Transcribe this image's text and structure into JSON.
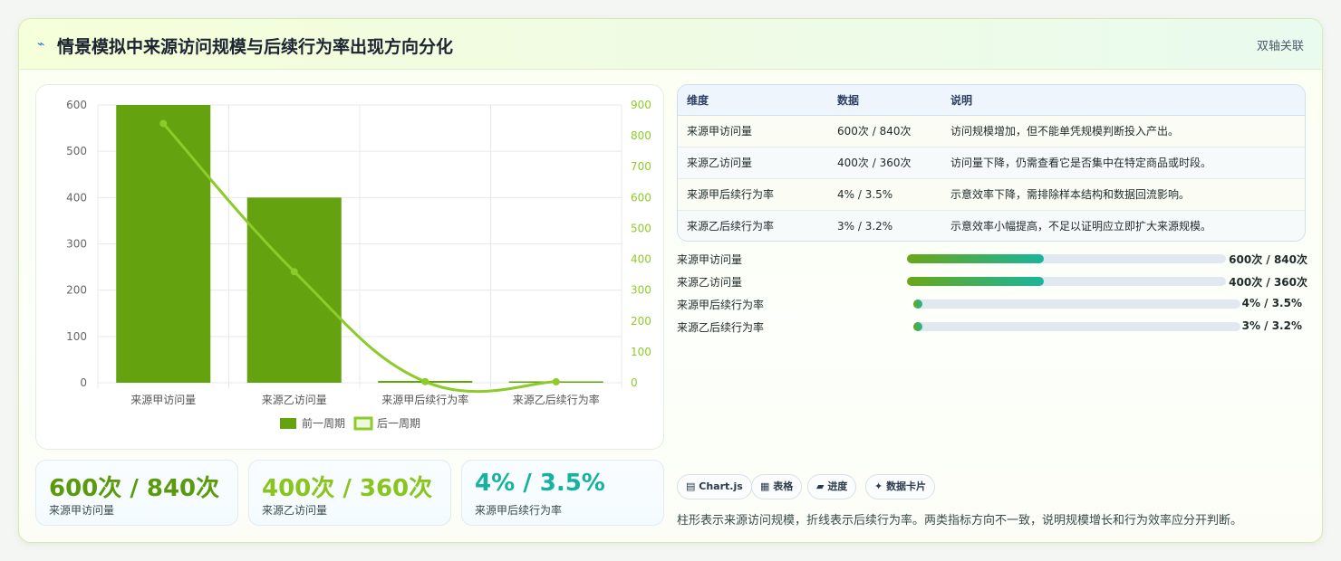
{
  "header": {
    "icon": "lightning-icon",
    "title": "情景模拟中来源访问规模与后续行为率出现方向分化",
    "tag": "双轴关联"
  },
  "colors": {
    "bar_prev": "#64a30f",
    "line_next": "#8ccb2a",
    "kpi_1": "#5a9a0c",
    "kpi_2": "#88c51d",
    "kpi_3": "#16b2a0"
  },
  "chart_data": {
    "type": "bar",
    "categories": [
      "来源甲访问量",
      "来源乙访问量",
      "来源甲后续行为率",
      "来源乙后续行为率"
    ],
    "series": [
      {
        "name": "前一周期",
        "type": "bar",
        "axis": "left",
        "values": [
          600,
          400,
          4,
          3
        ]
      },
      {
        "name": "后一周期",
        "type": "line",
        "axis": "right",
        "values": [
          840,
          360,
          3.5,
          3.2
        ]
      }
    ],
    "y_left": {
      "min": 0,
      "max": 600,
      "ticks": [
        "0",
        "100",
        "200",
        "300",
        "400",
        "500",
        "600"
      ]
    },
    "y_right": {
      "min": 0,
      "max": 900,
      "ticks": [
        "0",
        "100",
        "200",
        "300",
        "400",
        "500",
        "600",
        "700",
        "800",
        "900"
      ]
    },
    "grid": true,
    "legend": "bottom"
  },
  "kpis": [
    {
      "value": "600次 / 840次",
      "label": "来源甲访问量"
    },
    {
      "value": "400次 / 360次",
      "label": "来源乙访问量"
    },
    {
      "value": "4% / 3.5%",
      "label": "来源甲后续行为率"
    }
  ],
  "table": {
    "headers": [
      "维度",
      "数据",
      "说明"
    ],
    "rows": [
      [
        "来源甲访问量",
        "600次 / 840次",
        "访问规模增加，但不能单凭规模判断投入产出。"
      ],
      [
        "来源乙访问量",
        "400次 / 360次",
        "访问量下降，仍需查看它是否集中在特定商品或时段。"
      ],
      [
        "来源甲后续行为率",
        "4% / 3.5%",
        "示意效率下降，需排除样本结构和数据回流影响。"
      ],
      [
        "来源乙后续行为率",
        "3% / 3.2%",
        "示意效率小幅提高，不足以证明应立即扩大来源规模。"
      ]
    ]
  },
  "progress": [
    {
      "label": "来源甲访问量",
      "value": "600次 / 840次",
      "fraction": 0.43
    },
    {
      "label": "来源乙访问量",
      "value": "400次 / 360次",
      "fraction": 0.43
    },
    {
      "label": "来源甲后续行为率",
      "value": "4% / 3.5%",
      "fraction": 0.02
    },
    {
      "label": "来源乙后续行为率",
      "value": "3% / 3.2%",
      "fraction": 0.02
    }
  ],
  "chips": [
    {
      "icon": "chart-icon",
      "glyph": "▤",
      "label": "Chart.js"
    },
    {
      "icon": "table-icon",
      "glyph": "▦",
      "label": "表格"
    },
    {
      "icon": "progress-icon",
      "glyph": "▰",
      "label": "进度"
    },
    {
      "icon": "card-icon",
      "glyph": "✦",
      "label": "数据卡片"
    }
  ],
  "note": "柱形表示来源访问规模，折线表示后续行为率。两类指标方向不一致，说明规模增长和行为效率应分开判断。"
}
